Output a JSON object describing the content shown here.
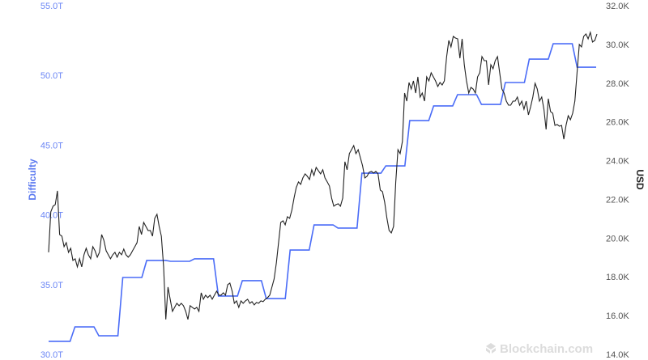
{
  "chart_data": {
    "type": "line",
    "title": "",
    "left_axis": {
      "label": "Difficulty",
      "ticks": [
        "55.0T",
        "50.0T",
        "45.0T",
        "40.0T",
        "35.0T",
        "30.0T"
      ],
      "range": [
        30,
        55
      ],
      "unit": "T",
      "color": "#6b86f5"
    },
    "right_axis": {
      "label": "USD",
      "ticks": [
        "32.0K",
        "30.0K",
        "28.0K",
        "26.0K",
        "24.0K",
        "22.0K",
        "20.0K",
        "18.0K",
        "16.0K",
        "14.0K"
      ],
      "range": [
        14000,
        32000
      ],
      "color": "#555555"
    },
    "grid": false,
    "series": [
      {
        "name": "Difficulty",
        "axis": "left",
        "color": "#4a6cf7",
        "step": true,
        "values": [
          30.93,
          31.97,
          31.33,
          35.51,
          36.73,
          36.67,
          36.85,
          34.18,
          35.28,
          34.0,
          37.48,
          39.28,
          39.05,
          42.99,
          43.51,
          46.76,
          47.81,
          48.62,
          47.92,
          49.49,
          51.17,
          52.27,
          50.59
        ]
      },
      {
        "name": "USD",
        "axis": "right",
        "color": "#222222",
        "values": [
          19266,
          21354,
          21646,
          21729,
          22439,
          20185,
          20101,
          19558,
          19767,
          19266,
          19475,
          18849,
          18932,
          18515,
          18932,
          18515,
          19141,
          19475,
          19141,
          18932,
          19558,
          19350,
          19016,
          19266,
          20185,
          19892,
          19350,
          19141,
          18932,
          19141,
          19266,
          19016,
          19266,
          19141,
          19433,
          19141,
          19016,
          19141,
          19350,
          19558,
          19767,
          20602,
          20185,
          20811,
          20602,
          20393,
          20393,
          20101,
          21020,
          21228,
          20602,
          20101,
          18515,
          15801,
          17471,
          16845,
          16218,
          16427,
          16636,
          16511,
          16636,
          16511,
          16218,
          15801,
          16511,
          16427,
          16344,
          16427,
          16218,
          17179,
          16845,
          17053,
          16928,
          17053,
          16845,
          17053,
          17262,
          17053,
          17053,
          17179,
          17053,
          17596,
          17680,
          17262,
          16636,
          16761,
          16427,
          16761,
          16636,
          16761,
          16845,
          16636,
          16719,
          16552,
          16678,
          16636,
          16761,
          16719,
          16845,
          16928,
          17053,
          17471,
          17888,
          18723,
          19767,
          20811,
          20894,
          20686,
          21103,
          21020,
          21437,
          22063,
          22606,
          22898,
          22773,
          23107,
          23316,
          23191,
          23024,
          23525,
          23232,
          23650,
          23483,
          23316,
          23525,
          23107,
          22898,
          22690,
          22063,
          21646,
          21729,
          21771,
          21646,
          22063,
          23942,
          23525,
          24360,
          24568,
          24777,
          24360,
          24568,
          24151,
          23733,
          23107,
          23191,
          23399,
          23441,
          23358,
          23441,
          23316,
          22481,
          22397,
          21855,
          21020,
          20393,
          20268,
          20602,
          22898,
          24568,
          24360,
          24986,
          27491,
          27073,
          28034,
          27700,
          28117,
          27491,
          28326,
          27282,
          27491,
          27073,
          28326,
          28117,
          28535,
          28326,
          28117,
          27825,
          28034,
          27908,
          28117,
          29370,
          30205,
          29871,
          30413,
          30330,
          30288,
          29286,
          30288,
          28952,
          28117,
          27491,
          27783,
          27700,
          27491,
          28326,
          28535,
          29370,
          29161,
          29161,
          27908,
          28952,
          28743,
          29161,
          29370,
          28535,
          27700,
          27491,
          27073,
          26865,
          26865,
          27073,
          27073,
          27282,
          26865,
          27073,
          26656,
          27073,
          26364,
          26781,
          27282,
          27992,
          27700,
          27073,
          27282,
          26656,
          25612,
          27199,
          26531,
          26447,
          25821,
          25863,
          25779,
          25821,
          25111,
          25821,
          26322,
          26113,
          26447,
          27073,
          28535,
          29996,
          29871,
          30413,
          30539,
          30288,
          30622,
          30121,
          30205,
          30539
        ]
      }
    ]
  },
  "watermark": {
    "text": "Blockchain.com",
    "icon": "blockchain-logo-icon"
  }
}
